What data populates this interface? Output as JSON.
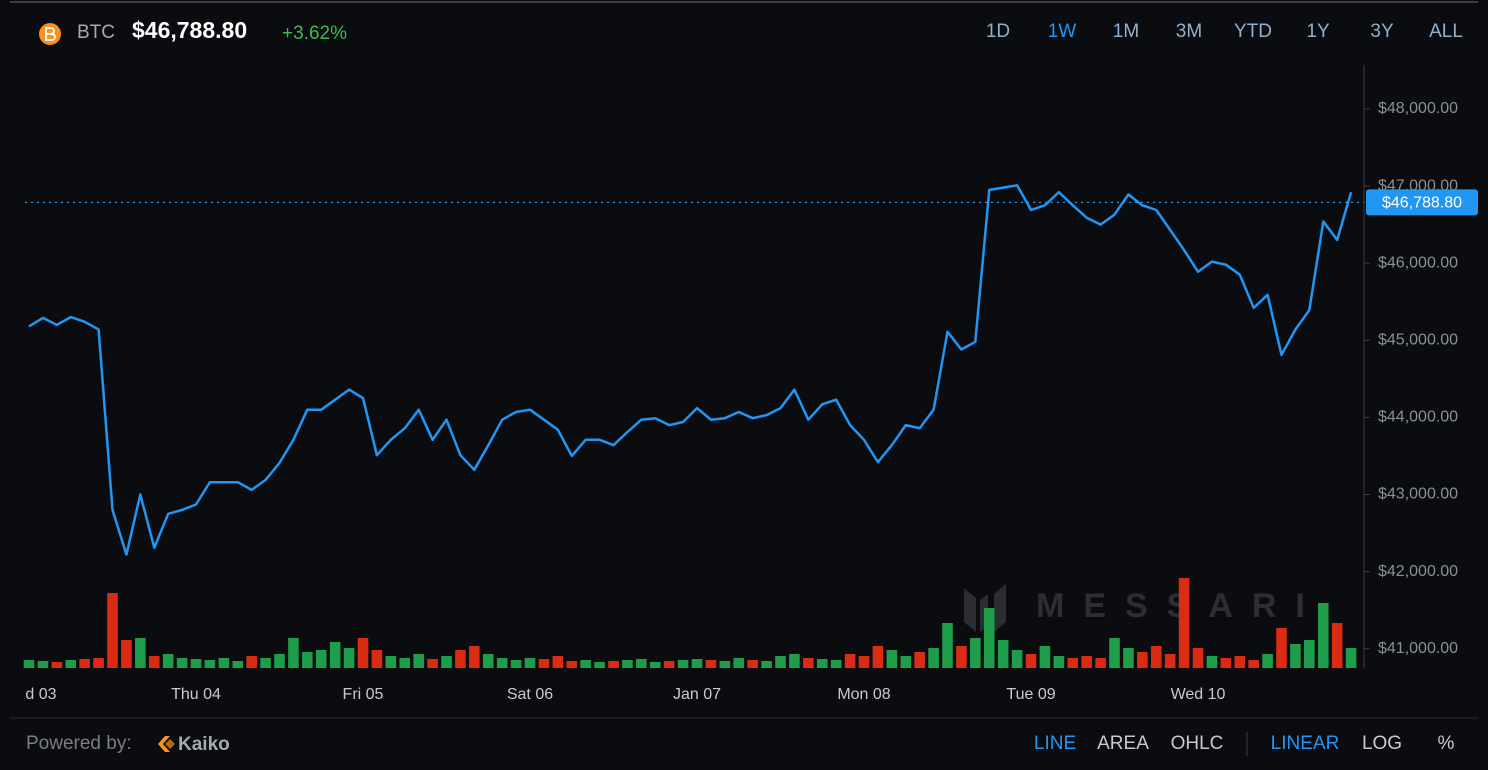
{
  "header": {
    "symbol": "BTC",
    "change": "+3.62%"
  },
  "ranges": {
    "items": [
      "1D",
      "1W",
      "1M",
      "3M",
      "YTD",
      "1Y",
      "3Y",
      "ALL"
    ],
    "active": 1
  },
  "watermark": "MESSARI",
  "footer": {
    "powered_by": "Powered by:",
    "provider": "Kaiko",
    "styles": {
      "items": [
        "LINE",
        "AREA",
        "OHLC"
      ],
      "active": 0
    },
    "scales": {
      "items": [
        "LINEAR",
        "LOG",
        "%"
      ],
      "active": 0
    }
  },
  "chart_data": {
    "type": "line",
    "color": "#2196f3",
    "current_price": {
      "value": 46788.8,
      "label": "$46,788.80"
    },
    "categories": [
      "d 03",
      null,
      null,
      null,
      null,
      null,
      null,
      null,
      null,
      null,
      null,
      null,
      "Thu 04",
      null,
      null,
      null,
      null,
      null,
      null,
      null,
      null,
      null,
      null,
      null,
      "Fri 05",
      null,
      null,
      null,
      null,
      null,
      null,
      null,
      null,
      null,
      null,
      null,
      "Sat 06",
      null,
      null,
      null,
      null,
      null,
      null,
      null,
      null,
      null,
      null,
      null,
      "Jan 07",
      null,
      null,
      null,
      null,
      null,
      null,
      null,
      null,
      null,
      null,
      null,
      "Mon 08",
      null,
      null,
      null,
      null,
      null,
      null,
      null,
      null,
      null,
      null,
      null,
      "Tue 09",
      null,
      null,
      null,
      null,
      null,
      null,
      null,
      null,
      null,
      null,
      null,
      "Wed 10",
      null,
      null,
      null,
      null,
      null,
      null,
      null,
      null,
      null,
      null,
      null
    ],
    "values": [
      45180,
      45290,
      45200,
      45300,
      45240,
      45140,
      42800,
      42220,
      43000,
      42310,
      42750,
      42800,
      42870,
      43160,
      43160,
      43160,
      43060,
      43190,
      43410,
      43710,
      44100,
      44100,
      44230,
      44360,
      44250,
      43510,
      43710,
      43860,
      44100,
      43710,
      43970,
      43510,
      43320,
      43640,
      43970,
      44070,
      44100,
      43970,
      43840,
      43500,
      43710,
      43710,
      43640,
      43810,
      43970,
      43990,
      43900,
      43940,
      44120,
      43970,
      43990,
      44070,
      43990,
      44030,
      44120,
      44360,
      43970,
      44170,
      44230,
      43900,
      43710,
      43420,
      43640,
      43900,
      43860,
      44100,
      45110,
      44880,
      44980,
      46950,
      46980,
      47010,
      46690,
      46750,
      46920,
      46750,
      46590,
      46500,
      46630,
      46890,
      46750,
      46690,
      46430,
      46170,
      45890,
      46020,
      45980,
      45850,
      45420,
      45590,
      44810,
      45140,
      45390,
      46540,
      46300,
      46920
    ],
    "volume": {
      "up_color": "#1e9e4a",
      "down_color": "#d92c12",
      "values": [
        8,
        7,
        6,
        8,
        9,
        10,
        75,
        28,
        30,
        12,
        14,
        10,
        9,
        8,
        10,
        7,
        12,
        10,
        14,
        30,
        16,
        18,
        26,
        20,
        30,
        18,
        12,
        10,
        14,
        9,
        12,
        18,
        22,
        14,
        10,
        8,
        10,
        9,
        12,
        7,
        8,
        6,
        7,
        8,
        9,
        6,
        7,
        8,
        9,
        8,
        7,
        10,
        8,
        7,
        12,
        14,
        10,
        9,
        8,
        14,
        12,
        22,
        18,
        12,
        16,
        20,
        45,
        22,
        30,
        60,
        28,
        18,
        14,
        22,
        12,
        10,
        12,
        10,
        30,
        20,
        16,
        22,
        14,
        90,
        20,
        12,
        10,
        12,
        8,
        14,
        40,
        24,
        28,
        65,
        45,
        20
      ]
    },
    "ylim": [
      40750,
      48570
    ],
    "yticks": [
      {
        "value": 41000,
        "label": "$41,000.00"
      },
      {
        "value": 42000,
        "label": "$42,000.00"
      },
      {
        "value": 43000,
        "label": "$43,000.00"
      },
      {
        "value": 44000,
        "label": "$44,000.00"
      },
      {
        "value": 45000,
        "label": "$45,000.00"
      },
      {
        "value": 46000,
        "label": "$46,000.00"
      },
      {
        "value": 47000,
        "label": "$47,000.00"
      },
      {
        "value": 48000,
        "label": "$48,000.00"
      }
    ]
  }
}
